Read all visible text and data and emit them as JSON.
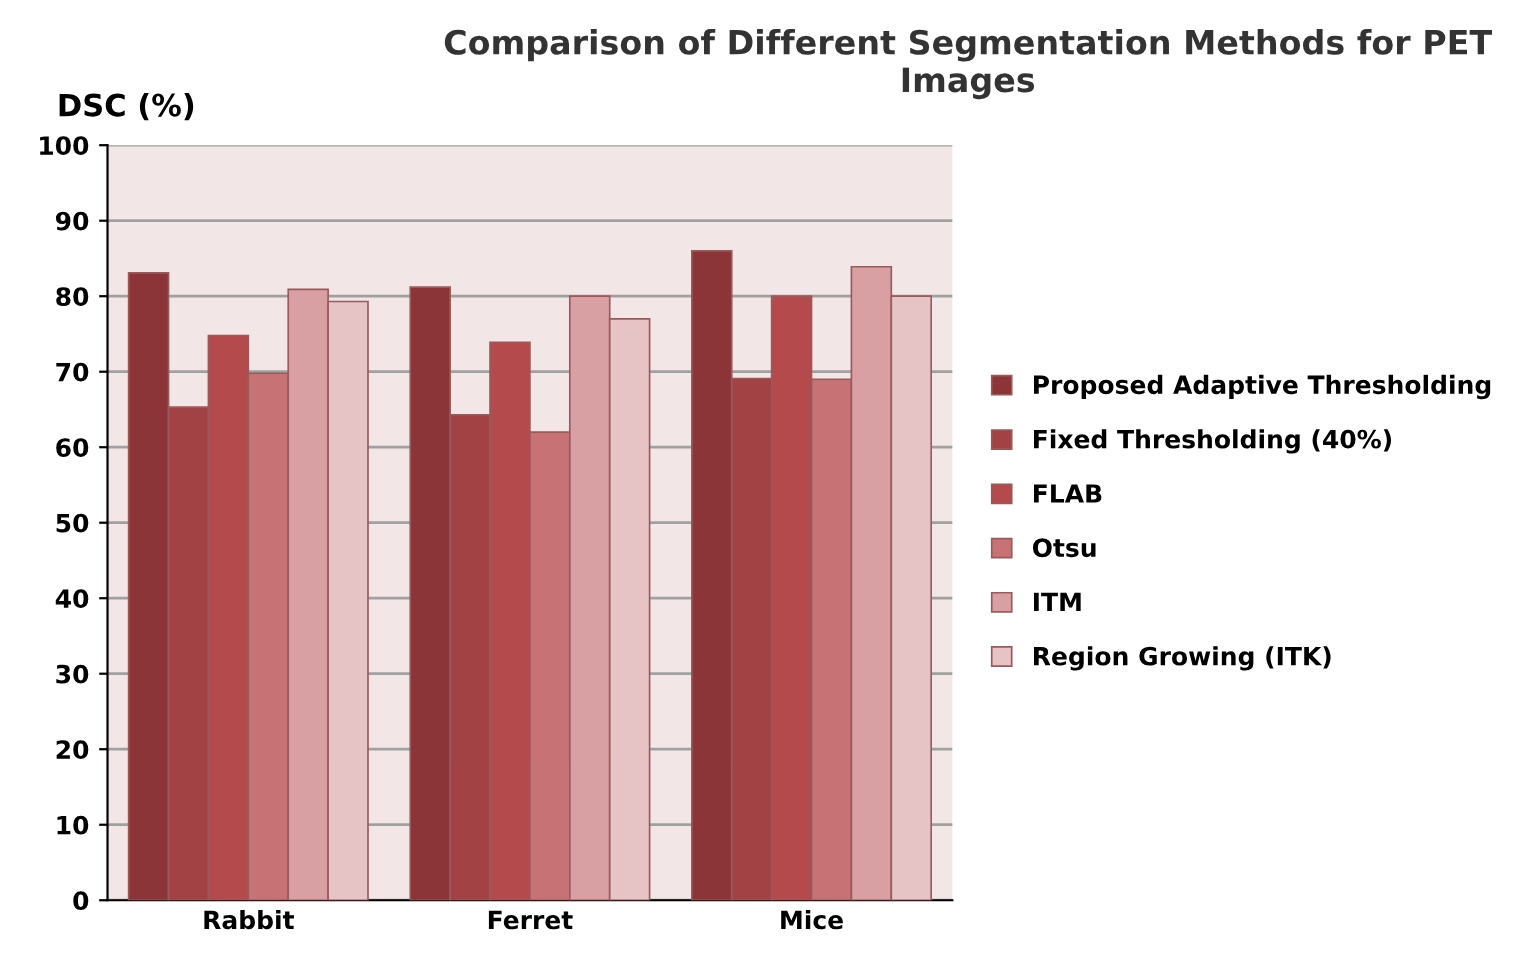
{
  "chart_data": {
    "type": "bar",
    "title": "Comparison of Different Segmentation Methods for PET Images",
    "ylabel": "DSC (%)",
    "categories": [
      "Rabbit",
      "Ferret",
      "Mice"
    ],
    "series": [
      {
        "name": "Proposed Adaptive Thresholding",
        "color": "#8b3538",
        "values": [
          83.1,
          81.2,
          86.0
        ]
      },
      {
        "name": "Fixed Thresholding (40%)",
        "color": "#a24245",
        "values": [
          65.3,
          64.3,
          69.1
        ]
      },
      {
        "name": "FLAB",
        "color": "#b44a4c",
        "values": [
          74.8,
          73.9,
          80
        ]
      },
      {
        "name": "Otsu",
        "color": "#c77375",
        "values": [
          69.8,
          62.0,
          69
        ]
      },
      {
        "name": "ITM",
        "color": "#d9a0a3",
        "values": [
          80.9,
          80,
          83.9
        ]
      },
      {
        "name": "Region Growing (ITK)",
        "color": "#e6c3c5",
        "values": [
          79.3,
          77,
          80
        ]
      }
    ],
    "ylim": [
      0,
      100
    ],
    "yticks": [
      0,
      10,
      20,
      30,
      40,
      50,
      60,
      70,
      80,
      90,
      100
    ],
    "grid": "y",
    "legend": "right"
  }
}
